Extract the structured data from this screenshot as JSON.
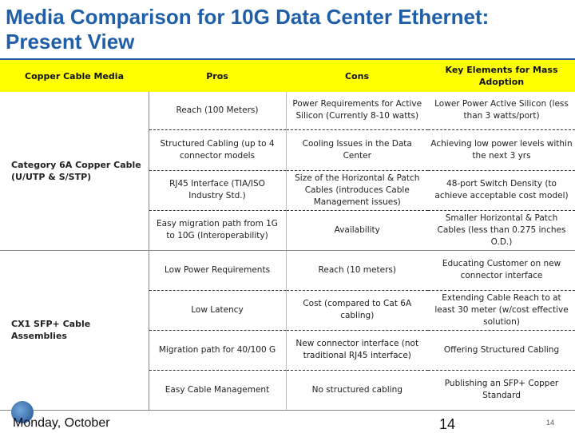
{
  "slide": {
    "title": "Media Comparison for 10G Data Center Ethernet: Present View",
    "footer_text": "Monday, October",
    "footer_number": "14",
    "page_number": "14"
  },
  "table": {
    "headers": [
      "Copper Cable Media",
      "Pros",
      "Cons",
      "Key Elements for Mass Adoption"
    ],
    "groups": [
      {
        "category": "Category 6A Copper Cable (U/UTP & S/STP)",
        "rows": [
          {
            "pros": "Reach (100 Meters)",
            "cons": "Power Requirements for Active Silicon (Currently 8-10 watts)",
            "key": "Lower Power Active Silicon (less than 3 watts/port)"
          },
          {
            "pros": "Structured Cabling (up to 4 connector models",
            "cons": "Cooling Issues in the Data Center",
            "key": "Achieving low power levels within the next 3 yrs"
          },
          {
            "pros": "RJ45 Interface (TIA/ISO Industry Std.)",
            "cons": "Size of the Horizontal & Patch Cables (introduces Cable Management issues)",
            "key": "48-port Switch Density (to achieve acceptable cost model)"
          },
          {
            "pros": "Easy migration path from 1G to 10G (Interoperability)",
            "cons": "Availability",
            "key": "Smaller Horizontal & Patch Cables (less than 0.275 inches O.D.)"
          }
        ]
      },
      {
        "category": "CX1 SFP+ Cable Assemblies",
        "rows": [
          {
            "pros": "Low Power Requirements",
            "cons": "Reach (10 meters)",
            "key": "Educating Customer on new connector interface"
          },
          {
            "pros": "Low Latency",
            "cons": "Cost (compared to Cat 6A cabling)",
            "key": "Extending Cable Reach to at least 30 meter (w/cost effective solution)"
          },
          {
            "pros": "Migration path for 40/100 G",
            "cons": "New connector interface (not traditional RJ45 interface)",
            "key": "Offering Structured Cabling"
          },
          {
            "pros": "Easy Cable Management",
            "cons": "No structured cabling",
            "key": "Publishing an SFP+ Copper Standard"
          }
        ]
      }
    ]
  }
}
